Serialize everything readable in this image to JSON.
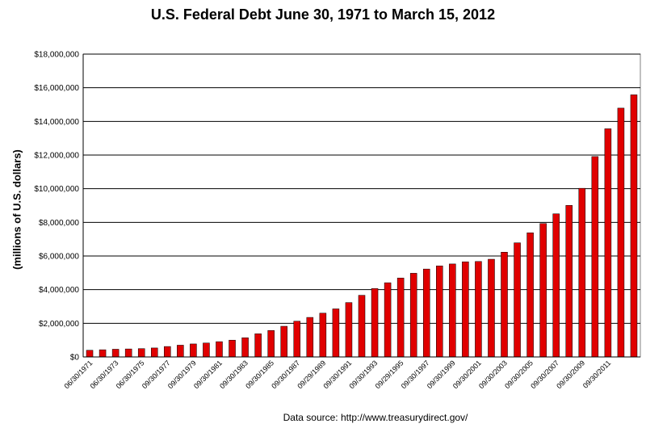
{
  "chart_data": {
    "type": "bar",
    "title": "U.S. Federal Debt June 30, 1971 to  March 15, 2012",
    "xlabel": "",
    "ylabel": "(millions of U.S. dollars)",
    "source": "Data source: http://www.treasurydirect.gov/",
    "ylim": [
      0,
      18000000
    ],
    "y_ticks": [
      "$0",
      "$2,000,000",
      "$4,000,000",
      "$6,000,000",
      "$8,000,000",
      "$10,000,000",
      "$12,000,000",
      "$14,000,000",
      "$16,000,000",
      "$18,000,000"
    ],
    "x_tick_labels": [
      "06/30/1971",
      "06/30/1973",
      "06/30/1975",
      "09/30/1977",
      "09/30/1979",
      "09/30/1981",
      "09/30/1983",
      "09/30/1985",
      "09/30/1987",
      "09/29/1989",
      "09/30/1991",
      "09/30/1993",
      "09/29/1995",
      "09/30/1997",
      "09/30/1999",
      "09/30/2001",
      "09/30/2003",
      "09/30/2005",
      "09/30/2007",
      "09/30/2009",
      "09/30/2011"
    ],
    "grid": true,
    "legend": "none",
    "bar_color": "#e00000",
    "values": [
      398000,
      427000,
      458000,
      475000,
      495000,
      533000,
      620000,
      699000,
      772000,
      827000,
      908000,
      998000,
      1142000,
      1377000,
      1572000,
      1823000,
      2125000,
      2350000,
      2602000,
      2857000,
      3233000,
      3665000,
      4065000,
      4411000,
      4693000,
      4974000,
      5225000,
      5413000,
      5526000,
      5656000,
      5674000,
      5807000,
      6228000,
      6783000,
      7379000,
      7933000,
      8507000,
      9008000,
      10025000,
      11910000,
      13562000,
      14790000,
      15580000
    ]
  }
}
